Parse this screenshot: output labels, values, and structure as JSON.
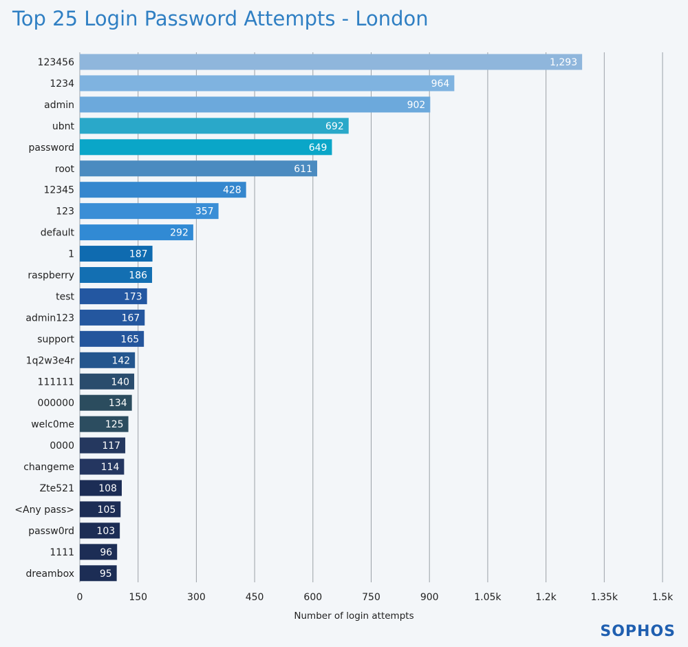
{
  "chart_data": {
    "type": "bar",
    "orientation": "horizontal",
    "title": "Top 25 Login Password Attempts - London",
    "xlabel": "Number of login attempts",
    "ylabel": "",
    "xlim": [
      0,
      1500
    ],
    "x_ticks": [
      0,
      150,
      300,
      450,
      600,
      750,
      900,
      1050,
      1200,
      1350,
      1500
    ],
    "x_tick_labels": [
      "0",
      "150",
      "300",
      "450",
      "600",
      "750",
      "900",
      "1.05k",
      "1.2k",
      "1.35k",
      "1.5k"
    ],
    "grid": true,
    "categories": [
      "123456",
      "1234",
      "admin",
      "ubnt",
      "password",
      "root",
      "12345",
      "123",
      "default",
      "1",
      "raspberry",
      "test",
      "admin123",
      "support",
      "1q2w3e4r",
      "111111",
      "000000",
      "welc0me",
      "0000",
      "changeme",
      "Zte521",
      "<Any pass>",
      "passw0rd",
      "1111",
      "dreambox"
    ],
    "values": [
      1293,
      964,
      902,
      692,
      649,
      611,
      428,
      357,
      292,
      187,
      186,
      173,
      167,
      165,
      142,
      140,
      134,
      125,
      117,
      114,
      108,
      105,
      103,
      96,
      95
    ],
    "value_labels": [
      "1,293",
      "964",
      "902",
      "692",
      "649",
      "611",
      "428",
      "357",
      "292",
      "187",
      "186",
      "173",
      "167",
      "165",
      "142",
      "140",
      "134",
      "125",
      "117",
      "114",
      "108",
      "105",
      "103",
      "96",
      "95"
    ],
    "colors": [
      "#8fb6dc",
      "#7fb3e0",
      "#6ca9dc",
      "#2aa8c9",
      "#0aa6c8",
      "#4b8bc0",
      "#3587ce",
      "#3a8ed6",
      "#318ad4",
      "#0f6bb0",
      "#136fb2",
      "#2357a1",
      "#24579f",
      "#24559c",
      "#24568e",
      "#2a4c6d",
      "#2b4c5e",
      "#2c4d60",
      "#25385f",
      "#243660",
      "#1c2d55",
      "#1c2d55",
      "#1c2d55",
      "#1c2d55",
      "#1c2d55"
    ]
  },
  "logo": "SOPHOS"
}
